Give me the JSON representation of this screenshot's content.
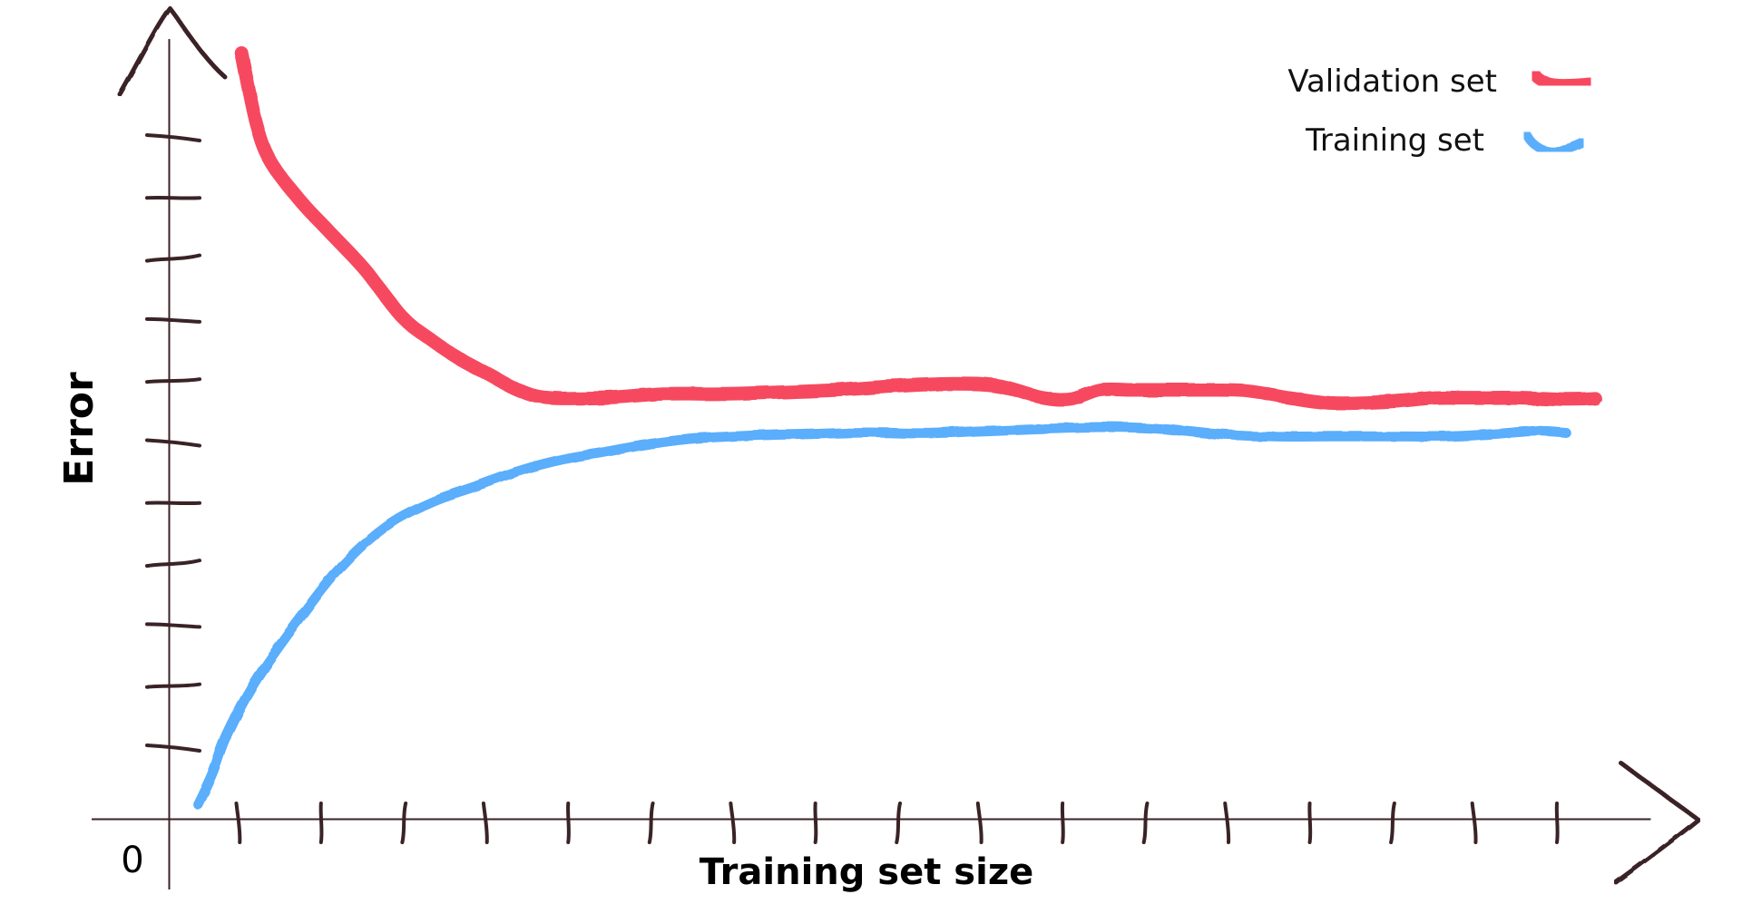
{
  "colors": {
    "axis": "#3a2326",
    "validation": "#f6485f",
    "training": "#5aaefb"
  },
  "chart_data": {
    "type": "line",
    "title": "",
    "xlabel": "Training set size",
    "ylabel": "Error",
    "origin_label": "0",
    "xlim": [
      0,
      100
    ],
    "ylim": [
      0,
      100
    ],
    "grid": false,
    "legend_position": "top-right",
    "x_tick_count": 17,
    "y_tick_count": 11,
    "series": [
      {
        "name": "Validation set",
        "color": "#f6485f",
        "x": [
          5,
          6,
          7,
          9,
          11,
          13.5,
          16,
          18,
          20,
          22,
          24,
          26,
          30,
          34,
          38,
          42,
          46,
          50,
          54,
          57,
          60,
          62,
          64,
          66,
          68,
          71,
          74,
          77,
          80,
          84,
          87,
          89,
          91,
          93,
          96,
          98
        ],
        "y": [
          99,
          90,
          85,
          80,
          76,
          71,
          65,
          62,
          59.5,
          57.5,
          55.5,
          54.5,
          54.5,
          55,
          55,
          55.2,
          55.5,
          56,
          56.3,
          56,
          54.5,
          54.3,
          55.5,
          55.5,
          55.5,
          55.5,
          55.4,
          54.5,
          53.8,
          54,
          54.5,
          54.5,
          54.5,
          54.5,
          54.3,
          54.4
        ]
      },
      {
        "name": "Training set",
        "color": "#5aaefb",
        "x": [
          2,
          3,
          4,
          6,
          9,
          12,
          15,
          18,
          21,
          24,
          27,
          30,
          33,
          36,
          40,
          44,
          48,
          52,
          56,
          60,
          64,
          68,
          72,
          76,
          80,
          84,
          88,
          91,
          94,
          96
        ],
        "y": [
          2,
          6,
          11,
          18,
          26,
          33,
          38,
          41,
          43,
          45,
          46.5,
          47.5,
          48.5,
          49.2,
          49.6,
          49.8,
          50,
          49.9,
          50.2,
          50.5,
          50.7,
          50.5,
          49.8,
          49.5,
          49.5,
          49.5,
          49.5,
          49.8,
          50.2,
          50
        ]
      }
    ]
  }
}
